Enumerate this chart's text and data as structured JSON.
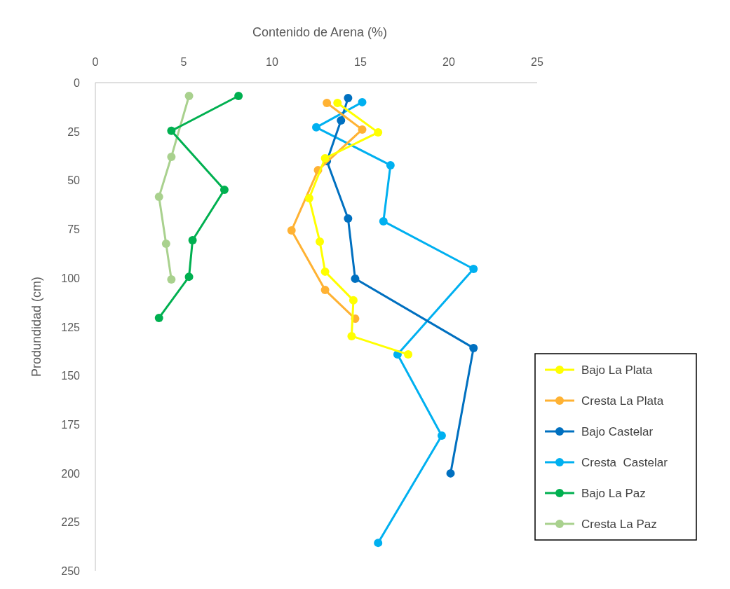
{
  "chart_data": {
    "type": "line",
    "xlabel": "Contenido de Arena (%)",
    "ylabel": "Produndidad (cm)",
    "xlim": [
      0,
      25
    ],
    "xticks": [
      0,
      5,
      10,
      15,
      20,
      25
    ],
    "ylim": [
      250,
      0
    ],
    "yticks": [
      0,
      25,
      50,
      75,
      100,
      125,
      150,
      175,
      200,
      225,
      250
    ],
    "grid": false,
    "legend": "bottom right",
    "marker": "circle",
    "line_style": "solid",
    "series": [
      {
        "name": "Bajo La Plata",
        "color": "#ffff00",
        "x": [
          13.7,
          16.0,
          13.0,
          12.1,
          12.7,
          13.0,
          14.6,
          14.5,
          17.7
        ],
        "values": [
          10.4,
          25.5,
          38.7,
          59.2,
          81.4,
          96.8,
          111.5,
          129.8,
          139.2
        ]
      },
      {
        "name": "Cresta La Plata",
        "color": "#ffb233",
        "x": [
          13.1,
          15.1,
          12.6,
          11.1,
          13.0,
          14.7
        ],
        "values": [
          10.4,
          24.0,
          44.8,
          75.7,
          106.2,
          120.9
        ]
      },
      {
        "name": "Bajo Castelar",
        "color": "#0070c0",
        "x": [
          14.3,
          13.9,
          13.1,
          14.3,
          14.7,
          21.4,
          20.1
        ],
        "values": [
          7.9,
          19.4,
          40.2,
          69.6,
          100.4,
          135.9,
          200.1
        ]
      },
      {
        "name": "Cresta  Castelar",
        "color": "#00b0f0",
        "x": [
          15.1,
          12.5,
          16.7,
          16.3,
          21.4,
          17.1,
          19.6,
          16.0
        ],
        "values": [
          10.0,
          22.9,
          42.3,
          71.0,
          95.4,
          139.2,
          180.8,
          235.7
        ]
      },
      {
        "name": "Bajo La Paz",
        "color": "#00b050",
        "x": [
          8.1,
          4.3,
          7.3,
          5.5,
          5.3,
          3.6
        ],
        "values": [
          6.8,
          24.7,
          54.9,
          80.7,
          99.4,
          120.5
        ]
      },
      {
        "name": "Cresta La Paz",
        "color": "#a9d18e",
        "x": [
          5.3,
          4.3,
          3.6,
          4.0,
          4.3
        ],
        "values": [
          6.8,
          38.0,
          58.5,
          82.5,
          100.8
        ]
      }
    ]
  }
}
